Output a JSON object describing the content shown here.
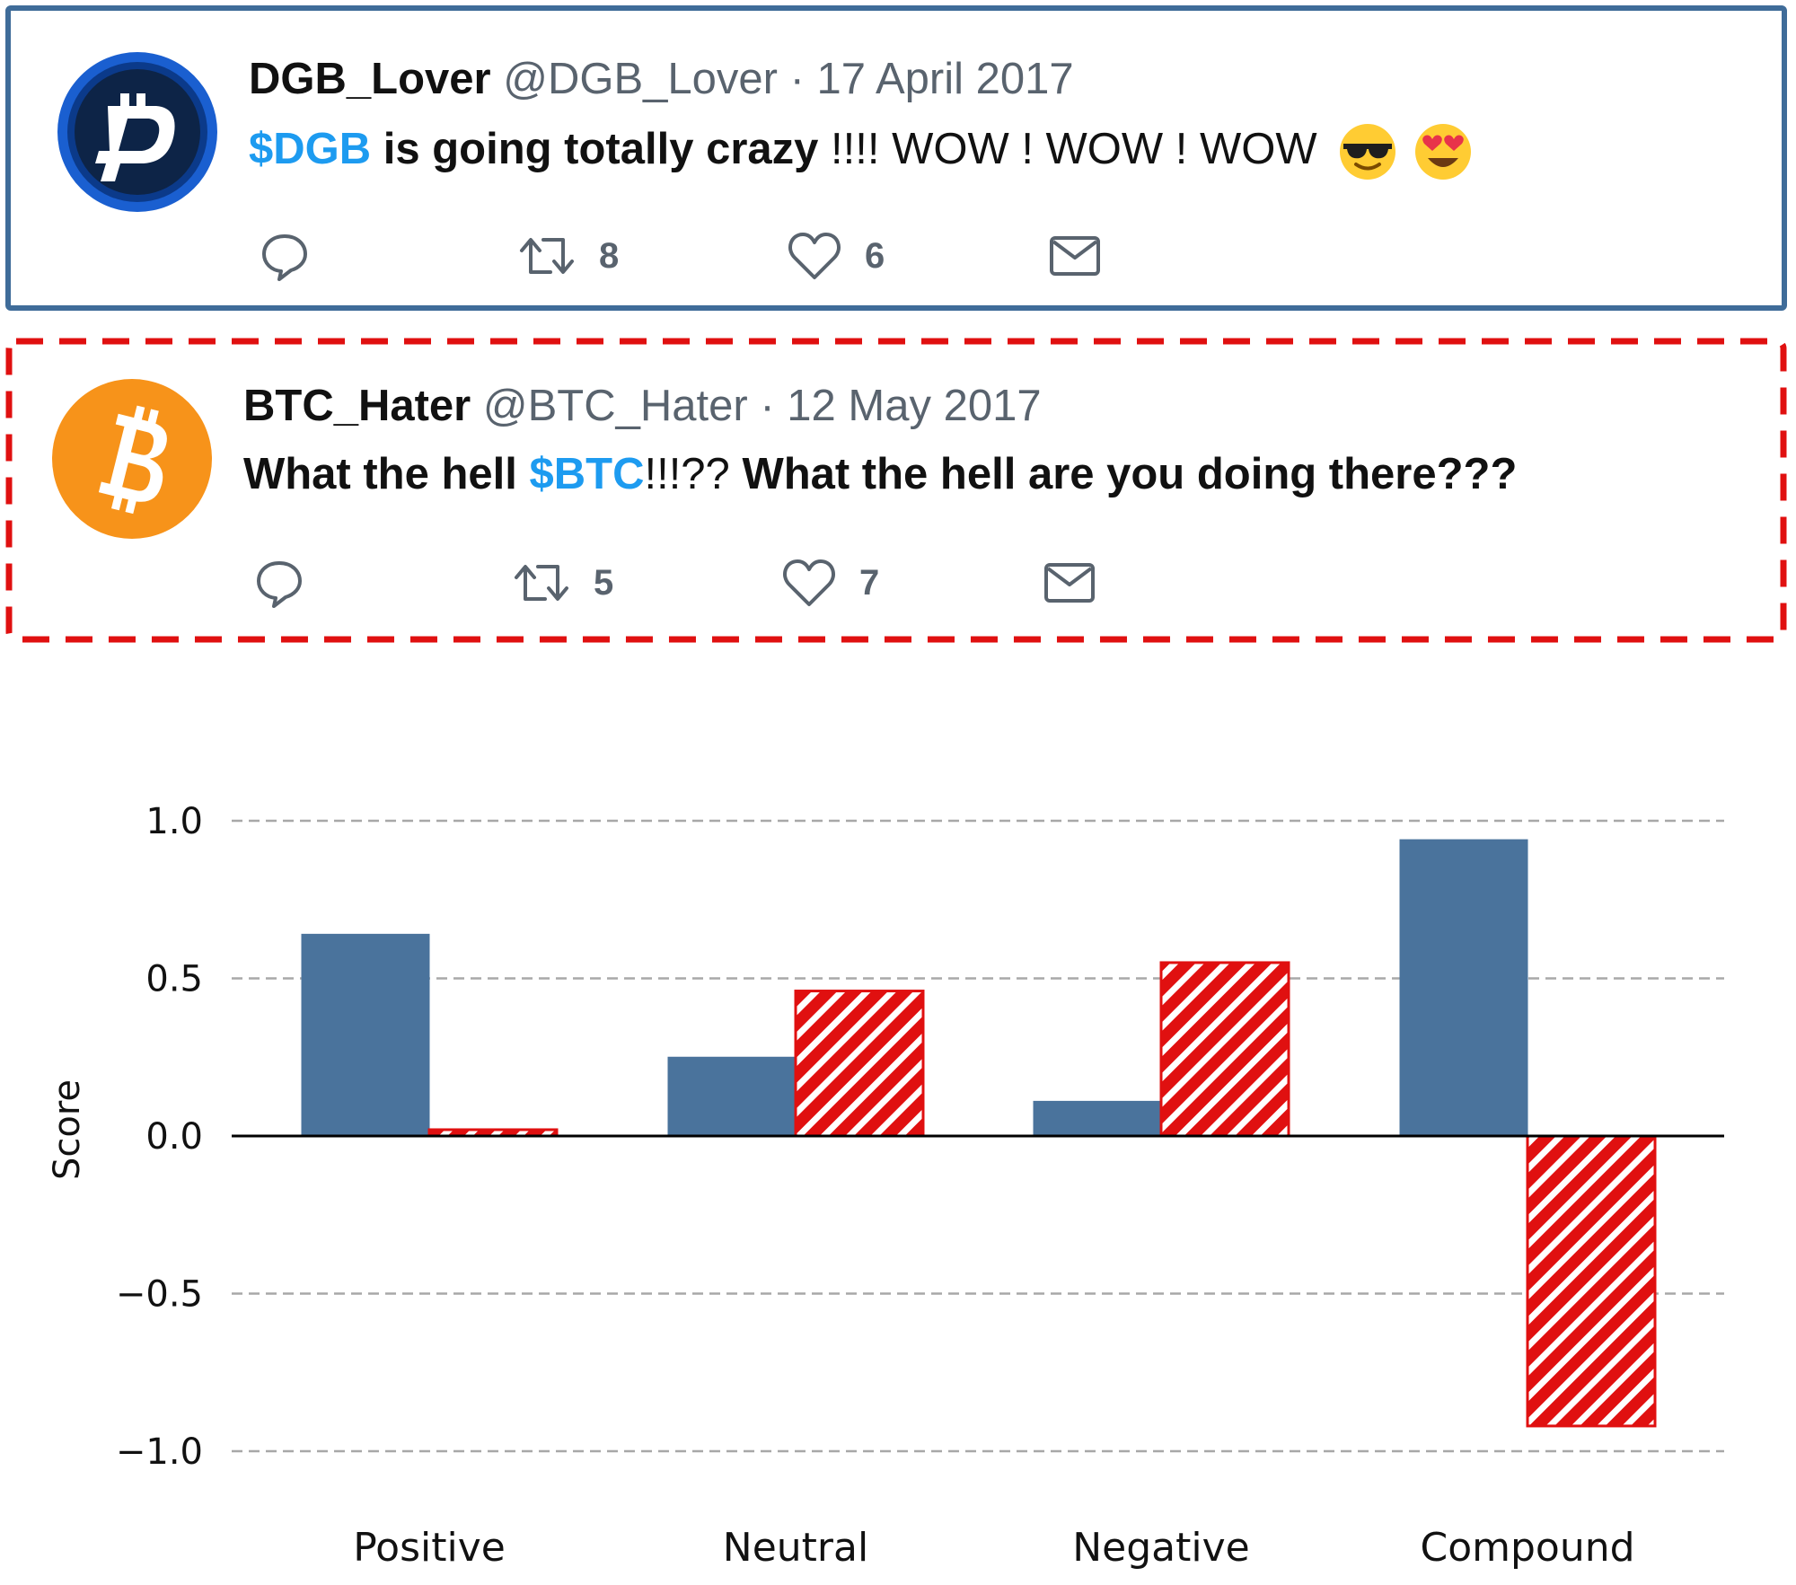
{
  "tweets": [
    {
      "name": "DGB_Lover",
      "handle": "@DGB_Lover",
      "separator": "·",
      "date": "17 April 2017",
      "text_tag": "$DGB",
      "text_rest_bold": " is going totally crazy",
      "text_rest": " !!!! WOW ! WOW ! WOW",
      "avatar_icon": "digibyte-logo",
      "avatar_color": "#0b3a8a",
      "retweets": "8",
      "likes": "6",
      "border_color": "#3f6c99",
      "border_style": "solid"
    },
    {
      "name": "BTC_Hater",
      "handle": "@BTC_Hater",
      "separator": "·",
      "date": "12 May 2017",
      "text_bold_1": "What the hell ",
      "text_tag": "$BTC",
      "text_plain": "!!!??",
      "text_bold_2": " What the hell are you doing there???",
      "avatar_icon": "bitcoin-logo",
      "avatar_color": "#f7931a",
      "retweets": "5",
      "likes": "7",
      "border_color": "#e01010",
      "border_style": "dashed"
    }
  ],
  "chart_data": {
    "type": "bar",
    "categories": [
      "Positive",
      "Neutral",
      "Negative",
      "Compound"
    ],
    "series": [
      {
        "values": [
          0.64,
          0.25,
          0.11,
          0.94
        ],
        "color": "#4a739c",
        "fill": "solid"
      },
      {
        "values": [
          0.02,
          0.46,
          0.55,
          -0.92
        ],
        "color": "#e01010",
        "fill": "hatched"
      }
    ],
    "xlabel": "",
    "ylabel": "Score",
    "ylim": [
      -1.1,
      1.1
    ],
    "yticks": [
      "1.0",
      "0.5",
      "0.0",
      "−0.5",
      "−1.0"
    ],
    "ytick_values": [
      1.0,
      0.5,
      0.0,
      -0.5,
      -1.0
    ],
    "grid": "dashed horizontal",
    "legend": "none"
  }
}
